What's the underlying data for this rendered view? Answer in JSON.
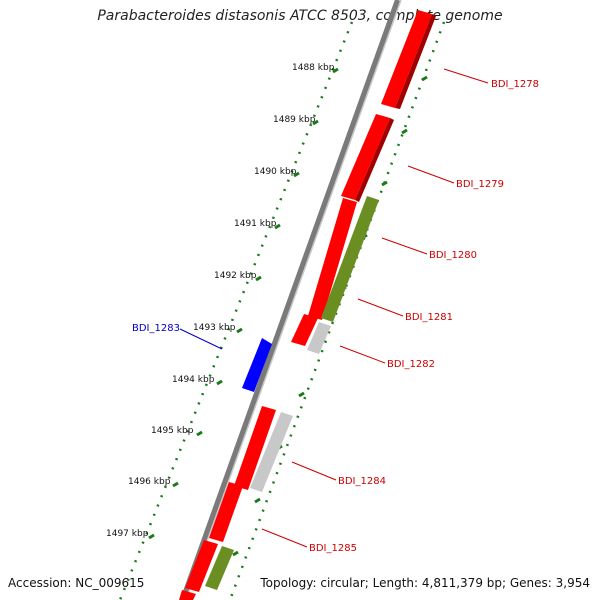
{
  "title": "Parabacteroides distasonis ATCC 8503, complete genome",
  "footer": {
    "accession": "Accession: NC_009615",
    "summary": "Topology: circular; Length: 4,811,379 bp; Genes: 3,954"
  },
  "ticks": [
    "1488 kbp",
    "1489 kbp",
    "1490 kbp",
    "1491 kbp",
    "1492 kbp",
    "1493 kbp",
    "1494 kbp",
    "1495 kbp",
    "1496 kbp",
    "1497 kbp"
  ],
  "gene_labels": [
    {
      "name": "BDI_1278",
      "color": "#cc0000"
    },
    {
      "name": "BDI_1279",
      "color": "#cc0000"
    },
    {
      "name": "BDI_1280",
      "color": "#cc0000"
    },
    {
      "name": "BDI_1281",
      "color": "#cc0000"
    },
    {
      "name": "BDI_1282",
      "color": "#cc0000"
    },
    {
      "name": "BDI_1283",
      "color": "#0000cc"
    },
    {
      "name": "BDI_1284",
      "color": "#cc0000"
    },
    {
      "name": "BDI_1285",
      "color": "#cc0000"
    }
  ],
  "colors": {
    "cds_forward": "#ff0000",
    "cds_reverse": "#0000ff",
    "rna": "#6b8e23",
    "other": "#c8c8c8",
    "backbone": "#888888",
    "tick_dots": "#1a7a1a"
  }
}
